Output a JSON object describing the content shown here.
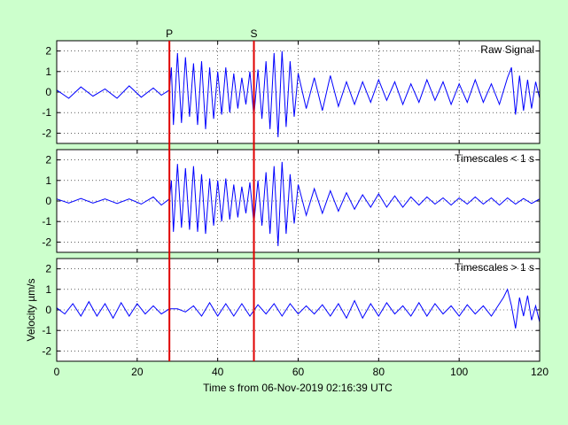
{
  "chart_data": [
    {
      "type": "line",
      "label": "Raw Signal",
      "xlim": [
        0,
        120
      ],
      "ylim": [
        -2.5,
        2.5
      ],
      "yticks": [
        -2,
        -1,
        0,
        1,
        2
      ],
      "grid": true,
      "series": [
        {
          "x": [
            0,
            3,
            6,
            9,
            12,
            15,
            18,
            21,
            24,
            26,
            28,
            28.5,
            29,
            30,
            31,
            32,
            33,
            34,
            35,
            36,
            37,
            38,
            39,
            40,
            41,
            42,
            43,
            44,
            45,
            46,
            47,
            48,
            49,
            50,
            51,
            52,
            53,
            54,
            55,
            56,
            57,
            58,
            59,
            60,
            62,
            64,
            66,
            68,
            70,
            72,
            74,
            76,
            78,
            80,
            82,
            84,
            86,
            88,
            90,
            92,
            94,
            96,
            98,
            100,
            102,
            104,
            106,
            108,
            110,
            112,
            113,
            114,
            115,
            116,
            117,
            118,
            119,
            120
          ],
          "y": [
            0.1,
            -0.3,
            0.25,
            -0.2,
            0.15,
            -0.3,
            0.3,
            -0.25,
            0.2,
            -0.15,
            0.1,
            1.2,
            -1.6,
            1.9,
            -1.5,
            1.7,
            -1.2,
            1.4,
            -1.6,
            1.5,
            -1.8,
            1.2,
            -1.3,
            1.0,
            -1.1,
            1.2,
            -1.0,
            0.9,
            -0.8,
            0.7,
            -0.6,
            1.0,
            -1.2,
            1.1,
            -1.3,
            1.5,
            -1.8,
            1.9,
            -2.2,
            2.0,
            -1.7,
            1.5,
            -1.2,
            0.9,
            -0.8,
            0.7,
            -0.9,
            0.8,
            -0.7,
            0.5,
            -0.6,
            0.5,
            -0.5,
            0.6,
            -0.4,
            0.5,
            -0.6,
            0.4,
            -0.5,
            0.6,
            -0.4,
            0.5,
            -0.6,
            0.4,
            -0.5,
            0.6,
            -0.5,
            0.4,
            -0.6,
            0.7,
            1.2,
            -1.1,
            0.8,
            -0.9,
            0.6,
            -0.8,
            0.5,
            -0.3
          ]
        }
      ]
    },
    {
      "type": "line",
      "label": "Timescales < 1 s",
      "xlim": [
        0,
        120
      ],
      "ylim": [
        -2.5,
        2.5
      ],
      "yticks": [
        -2,
        -1,
        0,
        1,
        2
      ],
      "grid": true,
      "series": [
        {
          "x": [
            0,
            3,
            6,
            9,
            12,
            15,
            18,
            21,
            24,
            26,
            28,
            28.5,
            29,
            30,
            31,
            32,
            33,
            34,
            35,
            36,
            37,
            38,
            39,
            40,
            41,
            42,
            43,
            44,
            45,
            46,
            47,
            48,
            49,
            50,
            51,
            52,
            53,
            54,
            55,
            56,
            57,
            58,
            59,
            60,
            62,
            64,
            66,
            68,
            70,
            72,
            74,
            76,
            78,
            80,
            82,
            84,
            86,
            88,
            90,
            92,
            94,
            96,
            98,
            100,
            102,
            104,
            106,
            108,
            110,
            112,
            114,
            116,
            118,
            120
          ],
          "y": [
            0.1,
            -0.1,
            0.12,
            -0.1,
            0.1,
            -0.12,
            0.1,
            -0.15,
            0.2,
            -0.2,
            0.1,
            1.0,
            -1.5,
            1.8,
            -1.3,
            1.6,
            -1.4,
            1.7,
            -1.5,
            1.3,
            -1.6,
            1.1,
            -1.2,
            1.0,
            -1.0,
            1.1,
            -0.9,
            0.8,
            -0.8,
            0.7,
            -0.6,
            0.9,
            -1.1,
            1.0,
            -1.2,
            1.4,
            -1.6,
            1.7,
            -2.2,
            1.9,
            -1.6,
            1.3,
            -1.1,
            0.8,
            -0.7,
            0.6,
            -0.6,
            0.5,
            -0.5,
            0.4,
            -0.4,
            0.3,
            -0.3,
            0.35,
            -0.3,
            0.25,
            -0.3,
            0.2,
            -0.2,
            0.2,
            -0.15,
            0.15,
            -0.2,
            0.15,
            -0.15,
            0.2,
            -0.15,
            0.15,
            -0.2,
            0.15,
            -0.15,
            0.12,
            -0.12,
            0.1
          ]
        }
      ]
    },
    {
      "type": "line",
      "label": "Timescales > 1 s",
      "xlim": [
        0,
        120
      ],
      "ylim": [
        -2.5,
        2.5
      ],
      "yticks": [
        -2,
        -1,
        0,
        1,
        2
      ],
      "grid": true,
      "series": [
        {
          "x": [
            0,
            2,
            4,
            6,
            8,
            10,
            12,
            14,
            16,
            18,
            20,
            22,
            24,
            26,
            28,
            30,
            32,
            34,
            36,
            38,
            40,
            42,
            44,
            46,
            48,
            50,
            52,
            54,
            56,
            58,
            60,
            62,
            64,
            66,
            68,
            70,
            72,
            74,
            76,
            78,
            80,
            82,
            84,
            86,
            88,
            90,
            92,
            94,
            96,
            98,
            100,
            102,
            104,
            106,
            108,
            110,
            111,
            112,
            113,
            114,
            115,
            116,
            117,
            118,
            119,
            120
          ],
          "y": [
            0.1,
            -0.2,
            0.3,
            -0.3,
            0.4,
            -0.3,
            0.3,
            -0.4,
            0.35,
            -0.3,
            0.3,
            -0.2,
            0.2,
            -0.2,
            0.05,
            0.05,
            -0.1,
            0.2,
            -0.3,
            0.35,
            -0.3,
            0.3,
            -0.3,
            0.3,
            -0.3,
            0.25,
            -0.2,
            0.3,
            -0.3,
            0.3,
            -0.2,
            0.2,
            -0.2,
            0.25,
            -0.3,
            0.3,
            -0.4,
            0.45,
            -0.4,
            0.3,
            -0.3,
            0.35,
            -0.2,
            0.2,
            -0.3,
            0.35,
            -0.3,
            0.3,
            -0.2,
            0.2,
            -0.3,
            0.25,
            -0.2,
            0.2,
            -0.3,
            0.3,
            0.6,
            1.0,
            0.2,
            -0.9,
            0.6,
            -0.3,
            0.7,
            -0.5,
            0.2,
            -0.6
          ]
        }
      ],
      "ylabel": "Velocity µm/s"
    }
  ],
  "xticks": [
    0,
    20,
    40,
    60,
    80,
    100,
    120
  ],
  "xlabel": "Time s from 06-Nov-2019 02:16:39 UTC",
  "markers": [
    {
      "label": "P",
      "x": 28
    },
    {
      "label": "S",
      "x": 49
    }
  ],
  "colors": {
    "background": "#ccffcc",
    "axes_bg": "#ffffff",
    "line": "#0000ff",
    "marker": "#e00000"
  }
}
